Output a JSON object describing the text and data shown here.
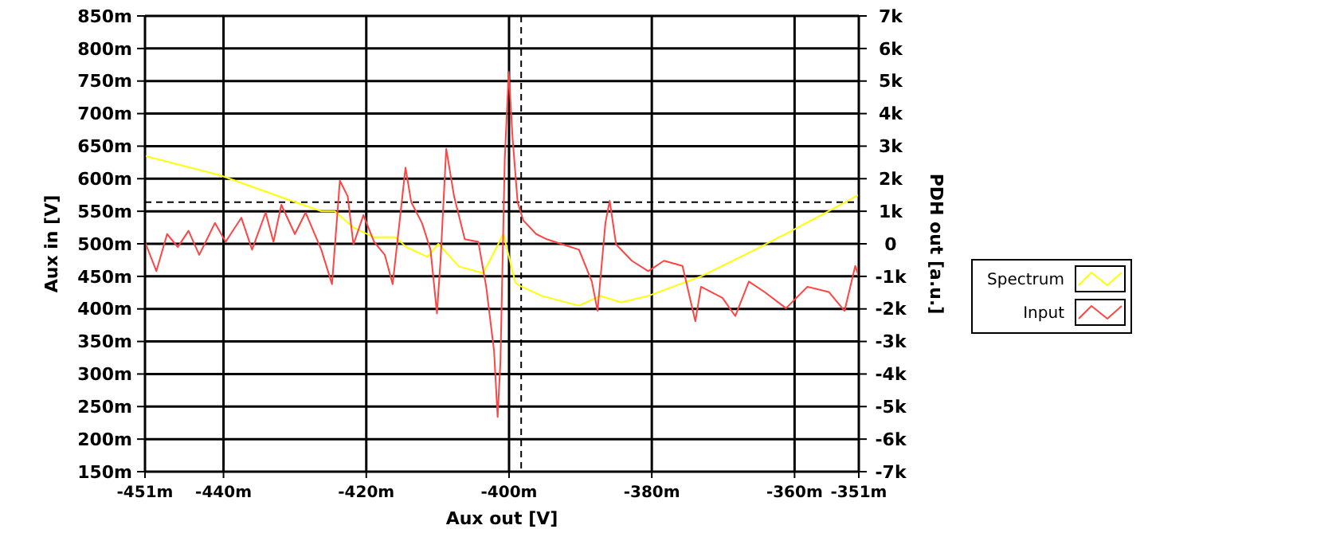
{
  "chart_data": {
    "type": "line",
    "xlabel": "Aux out [V]",
    "ylabel": "Aux in [V]",
    "y2label": "PDH out [a.u.]",
    "xlim": [
      -451,
      -351
    ],
    "xticks": [
      {
        "value": -451,
        "label": "-451m"
      },
      {
        "value": -440,
        "label": "-440m"
      },
      {
        "value": -420,
        "label": "-420m"
      },
      {
        "value": -400,
        "label": "-400m"
      },
      {
        "value": -380,
        "label": "-380m"
      },
      {
        "value": -360,
        "label": "-360m"
      },
      {
        "value": -351,
        "label": "-351m"
      }
    ],
    "ylim": [
      150,
      850
    ],
    "yticks": [
      {
        "value": 150,
        "label": "150m"
      },
      {
        "value": 200,
        "label": "200m"
      },
      {
        "value": 250,
        "label": "250m"
      },
      {
        "value": 300,
        "label": "300m"
      },
      {
        "value": 350,
        "label": "350m"
      },
      {
        "value": 400,
        "label": "400m"
      },
      {
        "value": 450,
        "label": "450m"
      },
      {
        "value": 500,
        "label": "500m"
      },
      {
        "value": 550,
        "label": "550m"
      },
      {
        "value": 600,
        "label": "600m"
      },
      {
        "value": 650,
        "label": "650m"
      },
      {
        "value": 700,
        "label": "700m"
      },
      {
        "value": 750,
        "label": "750m"
      },
      {
        "value": 800,
        "label": "800m"
      },
      {
        "value": 850,
        "label": "850m"
      }
    ],
    "y2lim": [
      -7000,
      7000
    ],
    "y2ticks": [
      {
        "value": -7000,
        "label": "-7k"
      },
      {
        "value": -6000,
        "label": "-6k"
      },
      {
        "value": -5000,
        "label": "-5k"
      },
      {
        "value": -4000,
        "label": "-4k"
      },
      {
        "value": -3000,
        "label": "-3k"
      },
      {
        "value": -2000,
        "label": "-2k"
      },
      {
        "value": -1000,
        "label": "-1k"
      },
      0,
      {
        "value": 1000,
        "label": "1k"
      },
      {
        "value": 2000,
        "label": "2k"
      },
      {
        "value": 3000,
        "label": "3k"
      },
      {
        "value": 4000,
        "label": "4k"
      },
      {
        "value": 5000,
        "label": "5k"
      },
      {
        "value": 6000,
        "label": "6k"
      },
      {
        "value": 7000,
        "label": "7k"
      }
    ],
    "grid": true,
    "legend": "right",
    "line_style": "solid",
    "ref_lines": [
      {
        "axis": "x",
        "value": -398.3,
        "line_style": "dashed",
        "color": "#000000"
      },
      {
        "axis": "y",
        "value": 564,
        "line_style": "dashed",
        "color": "#000000"
      }
    ],
    "series": [
      {
        "name": "Spectrum",
        "color": "#ffff00",
        "axis": "y2",
        "x": [
          -451,
          -440.4,
          -431.5,
          -426.3,
          -424.4,
          -421.8,
          -418.9,
          -415.9,
          -414.4,
          -411.4,
          -409.9,
          -407,
          -403.6,
          -400.8,
          -399.1,
          -398.4,
          -395.4,
          -390.2,
          -387.2,
          -384.3,
          -380.5,
          -373.1,
          -365.7,
          -360.4,
          -351
        ],
        "values": [
          2700,
          2100,
          1400,
          1000,
          1000,
          500,
          200,
          200,
          -100,
          -400,
          0,
          -700,
          -900,
          300,
          -1200,
          -1300,
          -1600,
          -1900,
          -1600,
          -1800,
          -1600,
          -1000,
          -200,
          400,
          1500
        ]
      },
      {
        "name": "Input",
        "color": "#ff4444",
        "axis": "y",
        "x": [
          -451,
          -449.4,
          -447.9,
          -446.4,
          -444.9,
          -443.4,
          -441.2,
          -439.7,
          -437.5,
          -436,
          -434.1,
          -433,
          -431.9,
          -430,
          -428.5,
          -426.3,
          -424.8,
          -423.7,
          -422.6,
          -421.8,
          -420.4,
          -418.9,
          -417.4,
          -416.3,
          -414.5,
          -413.7,
          -412.2,
          -411,
          -410.1,
          -409.6,
          -408.8,
          -407.7,
          -406.2,
          -404.3,
          -403.2,
          -402.1,
          -401.6,
          -401.2,
          -400.6,
          -400.04,
          -399.5,
          -398.8,
          -398,
          -396.2,
          -394.7,
          -392.5,
          -390.2,
          -388.4,
          -387.6,
          -386.5,
          -385.9,
          -385,
          -382.8,
          -380.5,
          -378.3,
          -375.7,
          -373.9,
          -373.1,
          -370.1,
          -368.3,
          -366.4,
          -364.2,
          -361.2,
          -358.2,
          -355.2,
          -353,
          -351.5,
          -351
        ],
        "values": [
          503,
          458,
          515,
          495,
          520,
          483,
          532,
          503,
          540,
          491,
          548,
          503,
          560,
          515,
          548,
          491,
          438,
          597,
          573,
          499,
          544,
          503,
          483,
          438,
          617,
          564,
          532,
          491,
          393,
          474,
          646,
          573,
          507,
          503,
          434,
          336,
          234,
          320,
          630,
          764,
          662,
          564,
          536,
          515,
          507,
          499,
          491,
          442,
          397,
          532,
          566,
          499,
          474,
          458,
          474,
          466,
          381,
          434,
          417,
          389,
          442,
          426,
          401,
          434,
          426,
          397,
          466,
          450
        ]
      }
    ]
  }
}
